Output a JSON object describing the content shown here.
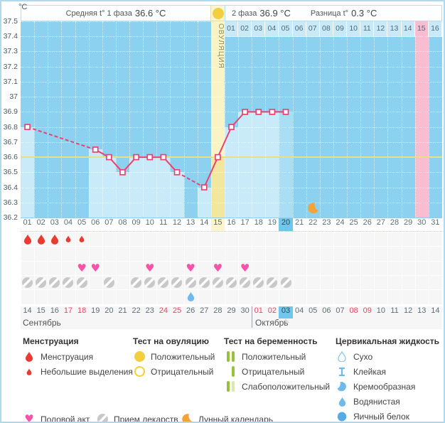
{
  "header": {
    "unit": "°C",
    "phase1_label": "Средняя t° 1 фаза",
    "phase1_value": "36.6 °C",
    "phase2_label": "2 фаза",
    "phase2_value": "36.9 °C",
    "diff_label": "Разница t°",
    "diff_value": "0.3 °C"
  },
  "chart_data": {
    "type": "line",
    "title": "Basal body temperature cycle chart",
    "ylabel": "°C",
    "ylim": [
      36.2,
      37.5
    ],
    "ytick_step": 0.1,
    "ytick_labels": [
      "37.5",
      "37.4",
      "37.3",
      "37.2",
      "37.1",
      "37",
      "36.9",
      "36.8",
      "36.7",
      "36.6",
      "36.5",
      "36.4",
      "36.3",
      "36.2"
    ],
    "cycle_day_labels": [
      "01",
      "02",
      "03",
      "04",
      "05",
      "06",
      "07",
      "08",
      "09",
      "10",
      "11",
      "12",
      "13",
      "14",
      "15",
      "16",
      "17",
      "18",
      "19",
      "20",
      "21",
      "22",
      "23",
      "24",
      "25",
      "26",
      "27",
      "28",
      "29",
      "30",
      "31"
    ],
    "points": [
      {
        "day": 1,
        "temp": 36.8
      },
      {
        "day": 6,
        "temp": 36.65
      },
      {
        "day": 7,
        "temp": 36.6
      },
      {
        "day": 8,
        "temp": 36.5
      },
      {
        "day": 9,
        "temp": 36.6
      },
      {
        "day": 10,
        "temp": 36.6
      },
      {
        "day": 11,
        "temp": 36.6
      },
      {
        "day": 12,
        "temp": 36.5
      },
      {
        "day": 14,
        "temp": 36.4
      },
      {
        "day": 15,
        "temp": 36.6
      },
      {
        "day": 16,
        "temp": 36.8
      },
      {
        "day": 17,
        "temp": 36.9
      },
      {
        "day": 18,
        "temp": 36.9
      },
      {
        "day": 19,
        "temp": 36.9
      },
      {
        "day": 20,
        "temp": 36.9
      }
    ],
    "coverline_temp": 36.6,
    "ovulation_day": 15,
    "ovulation_label": "ОВУЛЯЦИЯ",
    "today_day": 20,
    "expected_period_day": 30,
    "moon_day": 22,
    "dpo_row": {
      "start_day": 16,
      "labels": [
        "01",
        "02",
        "03",
        "04",
        "05",
        "06",
        "07",
        "08",
        "09",
        "10",
        "11",
        "12",
        "13",
        "14",
        "15",
        "16"
      ],
      "highlight_label": "15"
    }
  },
  "icon_rows": [
    {
      "name": "menstruation-row",
      "icons": [
        {
          "day": 1,
          "type": "drop-big"
        },
        {
          "day": 2,
          "type": "drop-big"
        },
        {
          "day": 3,
          "type": "drop-big"
        },
        {
          "day": 4,
          "type": "drop-small"
        },
        {
          "day": 5,
          "type": "drop-small"
        }
      ]
    },
    {
      "name": "ovulation-test-row",
      "icons": []
    },
    {
      "name": "intercourse-row",
      "icons": [
        {
          "day": 5,
          "type": "heart"
        },
        {
          "day": 6,
          "type": "heart"
        },
        {
          "day": 10,
          "type": "heart"
        },
        {
          "day": 13,
          "type": "heart"
        },
        {
          "day": 15,
          "type": "heart"
        },
        {
          "day": 17,
          "type": "heart"
        }
      ]
    },
    {
      "name": "medication-row",
      "icons": [
        {
          "day": 1,
          "type": "pill"
        },
        {
          "day": 2,
          "type": "pill"
        },
        {
          "day": 3,
          "type": "pill"
        },
        {
          "day": 4,
          "type": "pill"
        },
        {
          "day": 5,
          "type": "pill"
        },
        {
          "day": 7,
          "type": "pill"
        },
        {
          "day": 9,
          "type": "pill"
        },
        {
          "day": 10,
          "type": "pill"
        },
        {
          "day": 11,
          "type": "pill"
        },
        {
          "day": 12,
          "type": "pill"
        },
        {
          "day": 13,
          "type": "pill"
        },
        {
          "day": 14,
          "type": "pill"
        },
        {
          "day": 15,
          "type": "pill"
        },
        {
          "day": 16,
          "type": "pill"
        },
        {
          "day": 17,
          "type": "pill"
        },
        {
          "day": 18,
          "type": "pill"
        },
        {
          "day": 19,
          "type": "pill"
        },
        {
          "day": 20,
          "type": "pill"
        }
      ]
    },
    {
      "name": "cervical-fluid-row",
      "icons": [
        {
          "day": 13,
          "type": "drop-watery"
        }
      ]
    }
  ],
  "calendar": {
    "september": {
      "label": "Сентябрь",
      "days": [
        {
          "d": "14"
        },
        {
          "d": "15"
        },
        {
          "d": "16"
        },
        {
          "d": "17",
          "weekend": true
        },
        {
          "d": "18",
          "weekend": true
        },
        {
          "d": "19"
        },
        {
          "d": "20"
        },
        {
          "d": "21"
        },
        {
          "d": "22"
        },
        {
          "d": "23"
        },
        {
          "d": "24",
          "weekend": true
        },
        {
          "d": "25",
          "weekend": true
        },
        {
          "d": "26"
        },
        {
          "d": "27"
        },
        {
          "d": "28"
        },
        {
          "d": "29"
        },
        {
          "d": "30"
        }
      ]
    },
    "october": {
      "label": "Октябрь",
      "days": [
        {
          "d": "01",
          "weekend": true
        },
        {
          "d": "02",
          "weekend": true
        },
        {
          "d": "03",
          "today": true
        },
        {
          "d": "04"
        },
        {
          "d": "05"
        },
        {
          "d": "06"
        },
        {
          "d": "07"
        },
        {
          "d": "08",
          "weekend": true
        },
        {
          "d": "09",
          "weekend": true
        },
        {
          "d": "10"
        },
        {
          "d": "11"
        },
        {
          "d": "12"
        },
        {
          "d": "13"
        },
        {
          "d": "14"
        }
      ]
    }
  },
  "legend": {
    "columns": [
      {
        "header": "Менструация",
        "items": [
          {
            "icon": "drop-big",
            "label": "Менструация"
          },
          {
            "icon": "drop-small",
            "label": "Небольшие выделения"
          }
        ]
      },
      {
        "header": "Тест на овуляцию",
        "items": [
          {
            "icon": "circle-yellow",
            "label": "Положительный"
          },
          {
            "icon": "circle-yellow-outline",
            "label": "Отрицательный"
          }
        ]
      },
      {
        "header": "Тест на беременность",
        "items": [
          {
            "icon": "bars-positive",
            "label": "Положительный"
          },
          {
            "icon": "bar-negative",
            "label": "Отрицательный"
          },
          {
            "icon": "bars-weak",
            "label": "Слабоположительный"
          }
        ]
      },
      {
        "header": "Цервикальная жидкость",
        "items": [
          {
            "icon": "drop-outline",
            "label": "Сухо"
          },
          {
            "icon": "sticky",
            "label": "Клейкая"
          },
          {
            "icon": "creamy",
            "label": "Кремообразная"
          },
          {
            "icon": "drop-watery",
            "label": "Водянистая"
          },
          {
            "icon": "egg-white",
            "label": "Яичный белок"
          }
        ]
      }
    ],
    "bottom_items": [
      {
        "icon": "heart",
        "label": "Половой акт"
      },
      {
        "icon": "pill",
        "label": "Прием лекарств"
      },
      {
        "icon": "moon",
        "label": "Лунный календарь"
      }
    ]
  },
  "colors": {
    "chart_bg": "#8CD2F0",
    "bar": "#C9EAF9",
    "bar_today": "#A9DEF5",
    "ovulation_column": "#FAF3C5",
    "ovulation_bar": "#F3E79E",
    "pink": "#F8BDD1",
    "dpo_cell": "#C9E9F8",
    "coverline": "#EBE07A",
    "line": "#E9436F",
    "today_cell": "#70C7EB",
    "weekend_red": "#EF4166",
    "drop_red": "#EA3B33",
    "heart_pink": "#F653A9",
    "pill_gray": "#C8C8C8",
    "moon_orange": "#F2A43A",
    "test_yellow": "#F3CE3F",
    "green": "#97C13D",
    "green_pale": "#D9E9AE",
    "fluid_blue": "#6FB9EC",
    "fluid_dark": "#55ACE6",
    "fluid_light": "#8FC8EE",
    "grid_bg": "#F6F6F6",
    "border_blue": "#AEDAEF",
    "text_gray": "#5E6E76"
  }
}
